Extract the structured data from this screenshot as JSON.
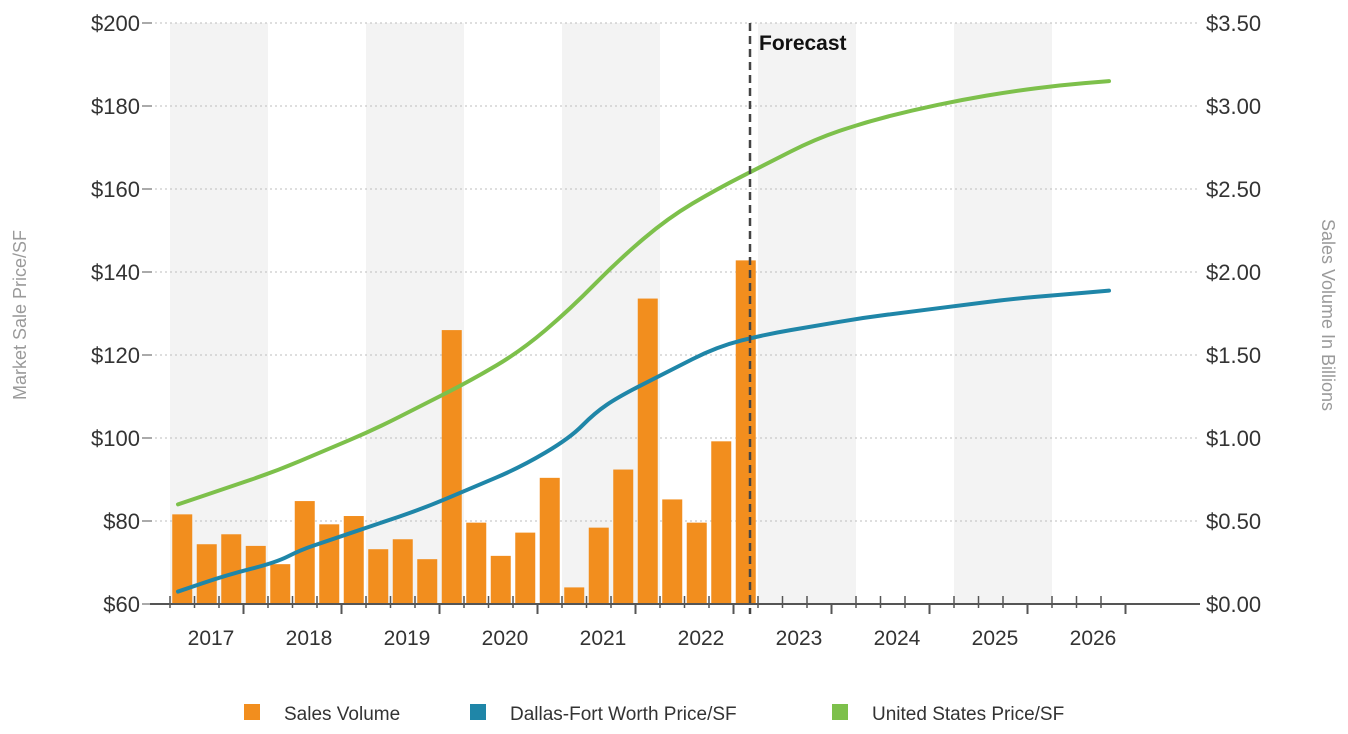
{
  "chart_data": {
    "type": "bar+line",
    "title": "",
    "forecast_label": "Forecast",
    "forecast_start_year": 2023,
    "y_left_label": "Market Sale Price/SF",
    "y_right_label": "Sales Volume In Billions",
    "y_left_range": [
      60,
      200
    ],
    "y_right_range": [
      0,
      3.5
    ],
    "y_left_ticks": [
      "$60",
      "$80",
      "$100",
      "$120",
      "$140",
      "$160",
      "$180",
      "$200"
    ],
    "y_right_ticks": [
      "$0.00",
      "$0.50",
      "$1.00",
      "$1.50",
      "$2.00",
      "$2.50",
      "$3.00",
      "$3.50"
    ],
    "x_years": [
      "2017",
      "2018",
      "2019",
      "2020",
      "2021",
      "2022",
      "2023",
      "2024",
      "2025",
      "2026"
    ],
    "grid": "alternating year bands",
    "legend_position": "bottom",
    "colors": {
      "sales_volume": "#F28E1E",
      "dfw": "#1F86A8",
      "us": "#7DC04B",
      "band": "#F3F3F3",
      "axis": "#555555"
    },
    "sales_volume": {
      "name": "Sales Volume",
      "quarters": [
        "2017 Q1",
        "2017 Q2",
        "2017 Q3",
        "2017 Q4",
        "2018 Q1",
        "2018 Q2",
        "2018 Q3",
        "2018 Q4",
        "2019 Q1",
        "2019 Q2",
        "2019 Q3",
        "2019 Q4",
        "2020 Q1",
        "2020 Q2",
        "2020 Q3",
        "2020 Q4",
        "2021 Q1",
        "2021 Q2",
        "2021 Q3",
        "2021 Q4",
        "2022 Q1",
        "2022 Q2",
        "2022 Q3",
        "2022 Q4"
      ],
      "values": [
        0.54,
        0.36,
        0.42,
        0.35,
        0.24,
        0.62,
        0.48,
        0.53,
        0.33,
        0.39,
        0.27,
        1.65,
        0.49,
        0.29,
        0.43,
        0.76,
        0.1,
        0.46,
        0.81,
        1.84,
        0.63,
        0.49,
        0.98,
        2.07
      ]
    },
    "dfw_price": {
      "name": "Dallas-Fort Worth Price/SF",
      "x": [
        2017.0,
        2017.5,
        2018.0,
        2018.25,
        2018.5,
        2019.0,
        2019.5,
        2020.0,
        2020.5,
        2021.0,
        2021.25,
        2021.5,
        2022.0,
        2022.5,
        2023.0,
        2023.5,
        2024.0,
        2024.5,
        2025.0,
        2025.5,
        2026.0,
        2026.5
      ],
      "values": [
        63,
        67,
        70,
        73,
        75,
        79,
        83,
        88,
        93,
        100,
        106,
        110,
        116,
        122,
        125,
        127,
        129,
        130.5,
        132,
        133.5,
        134.5,
        135.5
      ]
    },
    "us_price": {
      "name": "United States Price/SF",
      "x": [
        2017.0,
        2017.5,
        2018.0,
        2018.5,
        2019.0,
        2019.5,
        2020.0,
        2020.5,
        2021.0,
        2021.5,
        2022.0,
        2022.5,
        2023.0,
        2023.5,
        2024.0,
        2024.5,
        2025.0,
        2025.5,
        2026.0,
        2026.5
      ],
      "values": [
        84,
        88,
        92,
        97,
        102,
        108,
        114,
        121,
        131,
        143,
        153,
        160,
        166,
        172,
        176,
        179,
        181.5,
        183.5,
        185,
        186
      ]
    },
    "legend": [
      "Sales Volume",
      "Dallas-Fort Worth Price/SF",
      "United States Price/SF"
    ]
  }
}
